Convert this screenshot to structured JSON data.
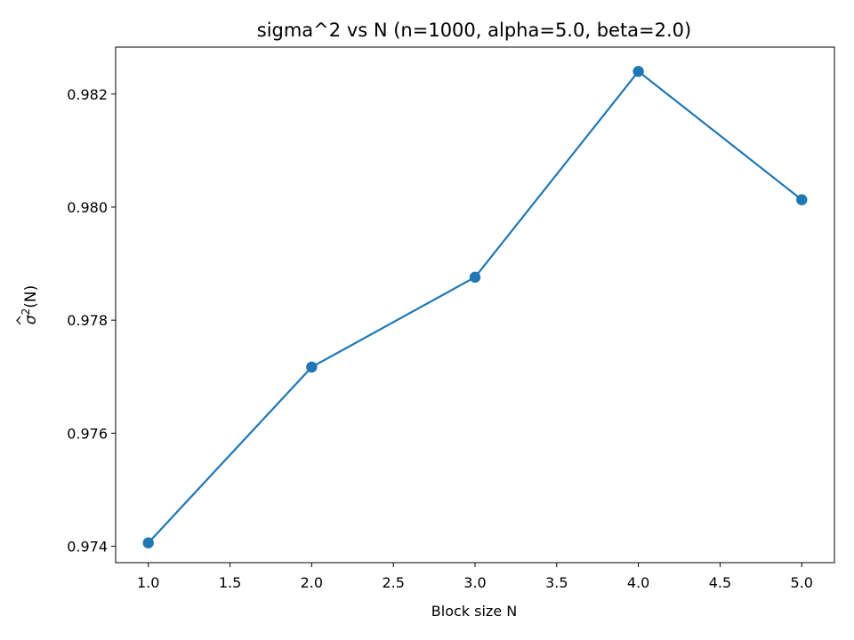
{
  "chart_data": {
    "type": "line",
    "title": "sigma^2 vs N  (n=1000, alpha=5.0, beta=2.0)",
    "xlabel": "Block size N",
    "ylabel": {
      "base": "σ",
      "sup": "2",
      "arg": "(N)"
    },
    "x": [
      1.0,
      2.0,
      3.0,
      4.0,
      5.0
    ],
    "series": [
      {
        "values": [
          0.97406,
          0.97717,
          0.97876,
          0.9824,
          0.98013
        ],
        "color": "#1f77b4",
        "marker": "circle"
      }
    ],
    "xlim": [
      0.8,
      5.2
    ],
    "ylim": [
      0.97371,
      0.98283
    ],
    "xticks": [
      {
        "value": 1.0,
        "label": "1.0"
      },
      {
        "value": 1.5,
        "label": "1.5"
      },
      {
        "value": 2.0,
        "label": "2.0"
      },
      {
        "value": 2.5,
        "label": "2.5"
      },
      {
        "value": 3.0,
        "label": "3.0"
      },
      {
        "value": 3.5,
        "label": "3.5"
      },
      {
        "value": 4.0,
        "label": "4.0"
      },
      {
        "value": 4.5,
        "label": "4.5"
      },
      {
        "value": 5.0,
        "label": "5.0"
      }
    ],
    "yticks": [
      {
        "value": 0.974,
        "label": "0.974"
      },
      {
        "value": 0.976,
        "label": "0.976"
      },
      {
        "value": 0.978,
        "label": "0.978"
      },
      {
        "value": 0.98,
        "label": "0.980"
      },
      {
        "value": 0.982,
        "label": "0.982"
      }
    ],
    "grid": false,
    "legend": "none"
  }
}
